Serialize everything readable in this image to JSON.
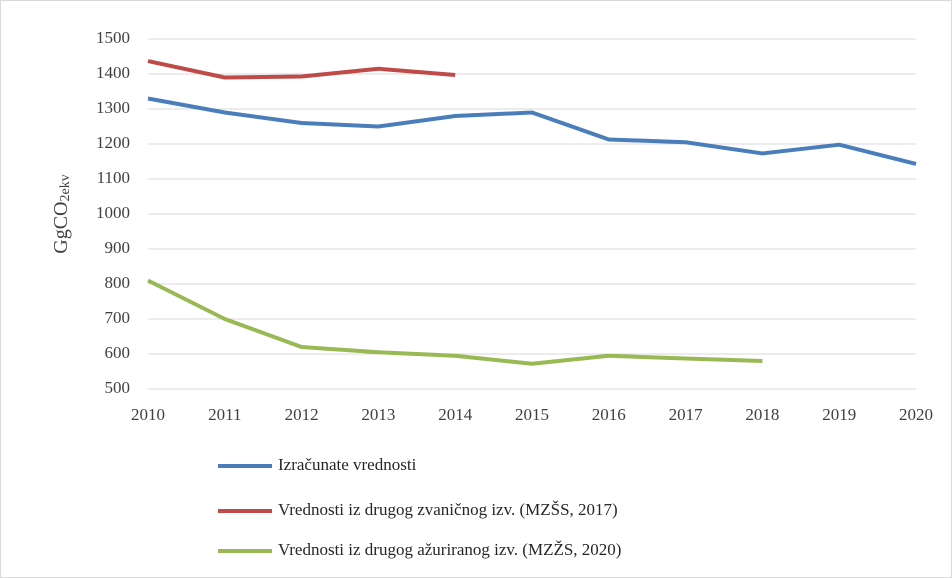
{
  "chart_data": {
    "type": "line",
    "y_label": {
      "text": "GgCO",
      "subscript": "2ekv"
    },
    "x": [
      2010,
      2011,
      2012,
      2013,
      2014,
      2015,
      2016,
      2017,
      2018,
      2019,
      2020
    ],
    "xlim": [
      2010,
      2020
    ],
    "xticks": [
      2010,
      2011,
      2012,
      2013,
      2014,
      2015,
      2016,
      2017,
      2018,
      2019,
      2020
    ],
    "ylim": [
      500,
      1500
    ],
    "yticks": [
      500,
      600,
      700,
      800,
      900,
      1000,
      1100,
      1200,
      1300,
      1400,
      1500
    ],
    "grid": true,
    "legend": "bottom",
    "series": [
      {
        "name": "Izračunate vrednosti",
        "color": "#4a7ebb",
        "values": [
          1330,
          1290,
          1260,
          1250,
          1280,
          1290,
          1213,
          1205,
          1173,
          1198,
          1143
        ]
      },
      {
        "name": "Vrednosti iz drugog zvaničnog izv. (MZŠS, 2017)",
        "color": "#be4b48",
        "values": [
          1437,
          1390,
          1393,
          1415,
          1397,
          null,
          null,
          null,
          null,
          null,
          null
        ]
      },
      {
        "name": "Vrednosti iz drugog ažuriranog izv. (MZŽS, 2020)",
        "color": "#98b954",
        "values": [
          810,
          700,
          620,
          605,
          595,
          572,
          595,
          587,
          580,
          null,
          null
        ]
      }
    ]
  }
}
